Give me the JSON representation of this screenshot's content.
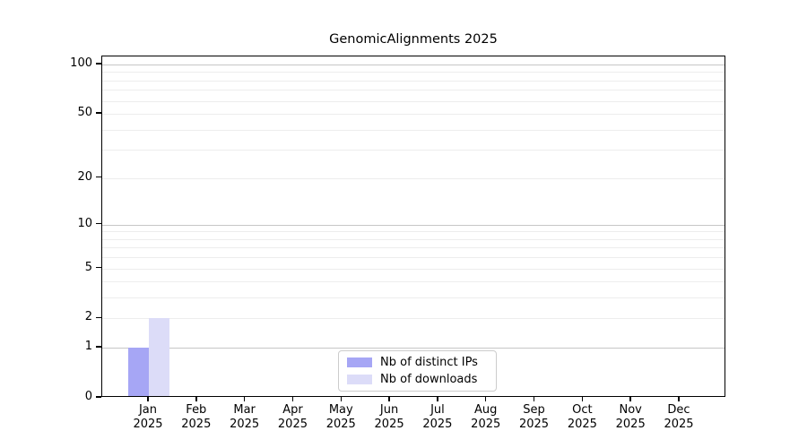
{
  "title": "GenomicAlignments 2025",
  "chart_data": {
    "type": "bar",
    "title": "GenomicAlignments 2025",
    "categories": [
      "Jan 2025",
      "Feb 2025",
      "Mar 2025",
      "Apr 2025",
      "May 2025",
      "Jun 2025",
      "Jul 2025",
      "Aug 2025",
      "Sep 2025",
      "Oct 2025",
      "Nov 2025",
      "Dec 2025"
    ],
    "x_tick_months": [
      "Jan",
      "Feb",
      "Mar",
      "Apr",
      "May",
      "Jun",
      "Jul",
      "Aug",
      "Sep",
      "Oct",
      "Nov",
      "Dec"
    ],
    "x_tick_year": "2025",
    "series": [
      {
        "name": "Nb of distinct IPs",
        "color": "#a6a6f5",
        "values": [
          1,
          0,
          0,
          0,
          0,
          0,
          0,
          0,
          0,
          0,
          0,
          0
        ]
      },
      {
        "name": "Nb of downloads",
        "color": "#dcdcf8",
        "values": [
          2,
          0,
          0,
          0,
          0,
          0,
          0,
          0,
          0,
          0,
          0,
          0
        ]
      }
    ],
    "xlabel": "",
    "ylabel": "",
    "yscale": "log1p",
    "yticks": [
      0,
      1,
      2,
      5,
      10,
      20,
      50,
      100
    ],
    "major_gridlines": [
      1,
      10,
      100
    ],
    "minor_gridlines": [
      2,
      3,
      4,
      5,
      6,
      7,
      8,
      9,
      20,
      30,
      40,
      50,
      60,
      70,
      80,
      90
    ],
    "ylim": [
      0,
      112
    ],
    "grid": true,
    "legend_position": "lower center",
    "colors": {
      "axis": "#000000",
      "major_grid": "#c6c6c6",
      "minor_grid": "#ededed",
      "background": "#ffffff"
    }
  }
}
